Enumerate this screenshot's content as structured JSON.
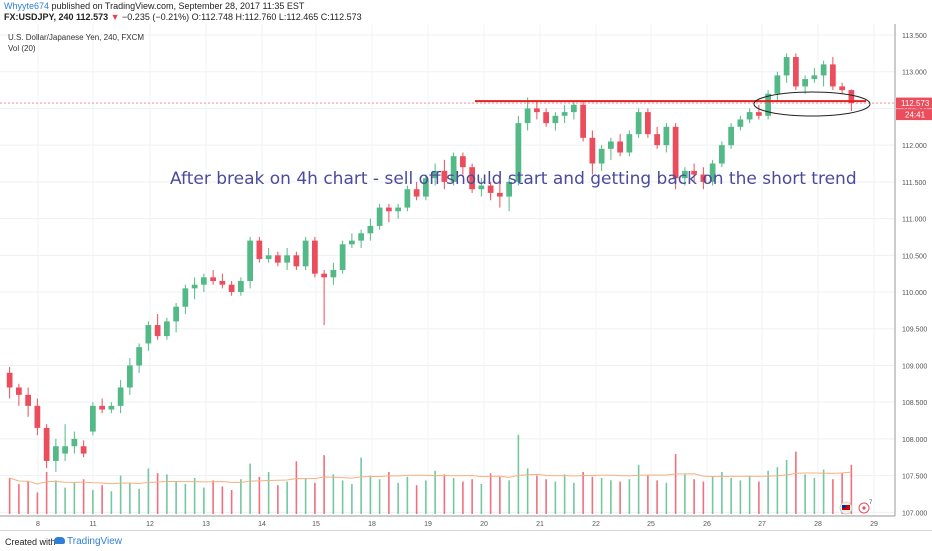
{
  "header": {
    "author": "Whyyte674",
    "published": "published on TradingView.com, September 28, 2017 11:35 EST",
    "symbol": "FX:USDJPY, 240",
    "last": "112.573",
    "change": "−0.235 (−0.21%)",
    "ohlc": "O:112.748 H:112.760 L:112.465 C:112.573"
  },
  "legend": {
    "instrument": "U.S. Dollar/Japanese Yen, 240, FXCM",
    "volume": "Vol (20)"
  },
  "annotation": "After break on 4h chart - sell off should start and getting back on the short trend",
  "price_label": "112.573",
  "countdown_label": "24:41",
  "footer": {
    "created_with": "Created with",
    "brand": "TradingView"
  },
  "colors": {
    "up": "#53b987",
    "down": "#eb4d5c",
    "line": "#e52020",
    "text_annotation": "#4b4b9c"
  },
  "chart_data": {
    "type": "candlestick",
    "title": "U.S. Dollar/Japanese Yen, 240, FXCM",
    "ylim": [
      106.95,
      113.65
    ],
    "y_ticks": [
      "113.500",
      "113.000",
      "112.500",
      "112.000",
      "111.500",
      "111.000",
      "110.500",
      "110.000",
      "109.500",
      "109.000",
      "108.500",
      "108.000",
      "107.500",
      "107.000"
    ],
    "x_ticks": [
      "8",
      "11",
      "12",
      "13",
      "14",
      "15",
      "18",
      "19",
      "20",
      "21",
      "22",
      "25",
      "26",
      "27",
      "28",
      "29"
    ],
    "horizontal_line": 112.6,
    "candles": [
      [
        108.9,
        108.98,
        108.55,
        108.7
      ],
      [
        108.7,
        108.75,
        108.45,
        108.6
      ],
      [
        108.6,
        108.7,
        108.3,
        108.45
      ],
      [
        108.45,
        108.55,
        108.05,
        108.15
      ],
      [
        108.15,
        108.2,
        107.6,
        107.7
      ],
      [
        107.7,
        108.0,
        107.55,
        107.9
      ],
      [
        107.8,
        108.2,
        107.7,
        107.9
      ],
      [
        107.9,
        108.1,
        107.8,
        108.0
      ],
      [
        107.9,
        107.98,
        107.75,
        107.8
      ],
      [
        108.1,
        108.5,
        108.05,
        108.45
      ],
      [
        108.45,
        108.55,
        108.35,
        108.4
      ],
      [
        108.4,
        108.5,
        108.35,
        108.45
      ],
      [
        108.45,
        108.8,
        108.35,
        108.7
      ],
      [
        108.7,
        109.1,
        108.6,
        109.0
      ],
      [
        109.0,
        109.3,
        108.9,
        109.25
      ],
      [
        109.3,
        109.6,
        109.2,
        109.55
      ],
      [
        109.55,
        109.7,
        109.35,
        109.4
      ],
      [
        109.4,
        109.65,
        109.35,
        109.6
      ],
      [
        109.6,
        109.85,
        109.45,
        109.8
      ],
      [
        109.8,
        110.1,
        109.7,
        110.05
      ],
      [
        110.05,
        110.2,
        109.9,
        110.1
      ],
      [
        110.1,
        110.25,
        110.0,
        110.2
      ],
      [
        110.2,
        110.3,
        110.1,
        110.15
      ],
      [
        110.15,
        110.25,
        110.05,
        110.1
      ],
      [
        110.1,
        110.15,
        109.95,
        110.0
      ],
      [
        110.0,
        110.2,
        109.95,
        110.15
      ],
      [
        110.15,
        110.75,
        110.05,
        110.7
      ],
      [
        110.7,
        110.75,
        110.4,
        110.45
      ],
      [
        110.45,
        110.6,
        110.4,
        110.5
      ],
      [
        110.5,
        110.55,
        110.35,
        110.4
      ],
      [
        110.4,
        110.6,
        110.3,
        110.5
      ],
      [
        110.5,
        110.55,
        110.3,
        110.35
      ],
      [
        110.35,
        110.75,
        110.3,
        110.7
      ],
      [
        110.7,
        110.75,
        110.2,
        110.25
      ],
      [
        110.25,
        110.3,
        109.55,
        110.2
      ],
      [
        110.2,
        110.4,
        110.1,
        110.3
      ],
      [
        110.3,
        110.7,
        110.25,
        110.65
      ],
      [
        110.65,
        110.8,
        110.6,
        110.7
      ],
      [
        110.7,
        110.85,
        110.6,
        110.8
      ],
      [
        110.8,
        111.0,
        110.7,
        110.9
      ],
      [
        110.9,
        111.2,
        110.85,
        111.15
      ],
      [
        111.15,
        111.2,
        110.95,
        111.1
      ],
      [
        111.1,
        111.2,
        111.0,
        111.15
      ],
      [
        111.15,
        111.45,
        111.1,
        111.4
      ],
      [
        111.4,
        111.5,
        111.25,
        111.3
      ],
      [
        111.3,
        111.6,
        111.25,
        111.55
      ],
      [
        111.55,
        111.75,
        111.45,
        111.65
      ],
      [
        111.65,
        111.8,
        111.4,
        111.5
      ],
      [
        111.5,
        111.9,
        111.45,
        111.85
      ],
      [
        111.85,
        111.9,
        111.6,
        111.7
      ],
      [
        111.7,
        111.75,
        111.35,
        111.4
      ],
      [
        111.4,
        111.55,
        111.3,
        111.45
      ],
      [
        111.45,
        111.5,
        111.25,
        111.35
      ],
      [
        111.35,
        111.55,
        111.15,
        111.3
      ],
      [
        111.3,
        111.55,
        111.1,
        111.5
      ],
      [
        111.5,
        112.4,
        111.45,
        112.3
      ],
      [
        112.3,
        112.65,
        112.2,
        112.5
      ],
      [
        112.5,
        112.6,
        112.35,
        112.45
      ],
      [
        112.45,
        112.5,
        112.25,
        112.3
      ],
      [
        112.3,
        112.45,
        112.2,
        112.4
      ],
      [
        112.4,
        112.55,
        112.3,
        112.45
      ],
      [
        112.45,
        112.6,
        112.35,
        112.55
      ],
      [
        112.55,
        112.6,
        112.05,
        112.1
      ],
      [
        112.1,
        112.2,
        111.6,
        111.75
      ],
      [
        111.75,
        112.0,
        111.65,
        111.95
      ],
      [
        111.95,
        112.1,
        111.8,
        112.05
      ],
      [
        112.05,
        112.15,
        111.85,
        111.9
      ],
      [
        111.9,
        112.2,
        111.85,
        112.15
      ],
      [
        112.15,
        112.5,
        112.1,
        112.45
      ],
      [
        112.45,
        112.5,
        112.1,
        112.15
      ],
      [
        112.15,
        112.25,
        111.95,
        112.0
      ],
      [
        112.0,
        112.3,
        111.9,
        112.25
      ],
      [
        112.25,
        112.3,
        111.4,
        111.55
      ],
      [
        111.55,
        111.7,
        111.45,
        111.65
      ],
      [
        111.65,
        111.75,
        111.5,
        111.6
      ],
      [
        111.6,
        111.7,
        111.4,
        111.5
      ],
      [
        111.5,
        111.8,
        111.45,
        111.75
      ],
      [
        111.75,
        112.05,
        111.7,
        112.0
      ],
      [
        112.0,
        112.3,
        111.95,
        112.25
      ],
      [
        112.25,
        112.4,
        112.2,
        112.35
      ],
      [
        112.35,
        112.5,
        112.3,
        112.45
      ],
      [
        112.45,
        112.55,
        112.35,
        112.4
      ],
      [
        112.4,
        112.75,
        112.35,
        112.7
      ],
      [
        112.7,
        113.0,
        112.6,
        112.95
      ],
      [
        112.95,
        113.25,
        112.85,
        113.2
      ],
      [
        113.2,
        113.25,
        112.75,
        112.8
      ],
      [
        112.8,
        112.95,
        112.7,
        112.9
      ],
      [
        112.9,
        113.05,
        112.85,
        112.95
      ],
      [
        112.95,
        113.15,
        112.8,
        113.1
      ],
      [
        113.1,
        113.2,
        112.75,
        112.8
      ],
      [
        112.8,
        112.85,
        112.7,
        112.75
      ],
      [
        112.75,
        112.76,
        112.465,
        112.573
      ]
    ],
    "volumes": [
      0.3,
      0.25,
      0.27,
      0.18,
      0.35,
      0.28,
      0.22,
      0.26,
      0.29,
      0.2,
      0.24,
      0.19,
      0.32,
      0.26,
      0.21,
      0.38,
      0.34,
      0.33,
      0.27,
      0.25,
      0.3,
      0.22,
      0.28,
      0.23,
      0.2,
      0.29,
      0.42,
      0.31,
      0.35,
      0.24,
      0.27,
      0.44,
      0.3,
      0.26,
      0.49,
      0.33,
      0.28,
      0.25,
      0.47,
      0.32,
      0.29,
      0.35,
      0.26,
      0.31,
      0.24,
      0.28,
      0.36,
      0.33,
      0.3,
      0.27,
      0.29,
      0.25,
      0.34,
      0.31,
      0.28,
      0.66,
      0.38,
      0.32,
      0.29,
      0.27,
      0.33,
      0.26,
      0.35,
      0.31,
      0.3,
      0.28,
      0.27,
      0.29,
      0.41,
      0.32,
      0.28,
      0.26,
      0.5,
      0.33,
      0.29,
      0.27,
      0.31,
      0.35,
      0.3,
      0.28,
      0.32,
      0.27,
      0.36,
      0.39,
      0.45,
      0.52,
      0.33,
      0.3,
      0.37,
      0.29,
      0.34,
      0.41
    ]
  }
}
